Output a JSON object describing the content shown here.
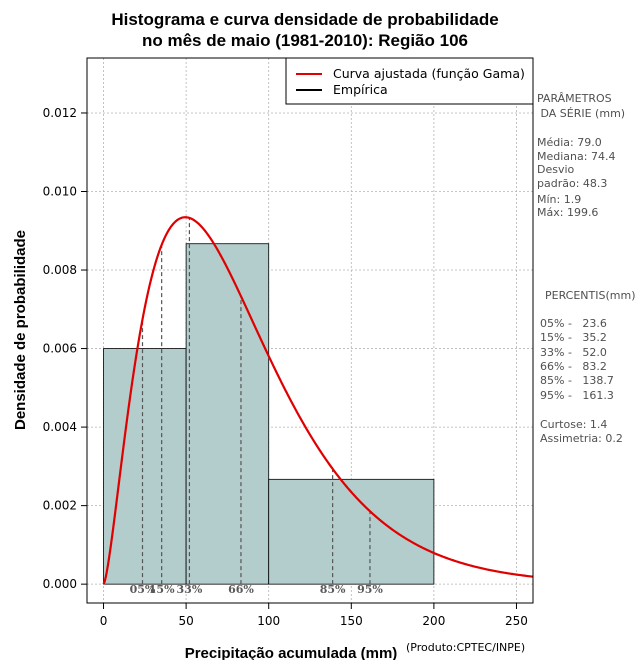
{
  "chart_data": {
    "type": "histogram",
    "title_lines": [
      "Histograma e curva densidade de probabilidade",
      "no mês de maio (1981-2010): Região 106"
    ],
    "xlabel": "Precipitação acumulada (mm)",
    "ylabel": "Densidade de probabilidade",
    "credit": "(Produto:CPTEC/INPE)",
    "xlim": [
      -10,
      260
    ],
    "ylim": [
      -0.00048,
      0.0134
    ],
    "x_ticks": [
      0,
      50,
      100,
      150,
      200,
      250
    ],
    "x_tick_labels": [
      "0",
      "50",
      "100",
      "150",
      "200",
      "250"
    ],
    "y_ticks": [
      0.0,
      0.002,
      0.004,
      0.006,
      0.008,
      0.01,
      0.012
    ],
    "y_tick_labels": [
      "0.000",
      "0.002",
      "0.004",
      "0.006",
      "0.008",
      "0.010",
      "0.012"
    ],
    "grid": true,
    "bins": [
      {
        "start": 0,
        "end": 50,
        "density": 0.006
      },
      {
        "start": 50,
        "end": 100,
        "density": 0.00867
      },
      {
        "start": 100,
        "end": 200,
        "density": 0.00267
      }
    ],
    "fitted_curve": {
      "name": "Curva ajustada (função Gama)",
      "distribution": "gamma",
      "shape": 2.5,
      "scale": 33.0,
      "x_range": [
        0,
        260
      ],
      "color": "#e00000"
    },
    "empirical": {
      "name": "Empírica",
      "color": "#000000"
    },
    "legend_position": "top-right",
    "percentile_markers": [
      {
        "label": "05%",
        "value": 23.6
      },
      {
        "label": "15%",
        "value": 35.2
      },
      {
        "label": "33%",
        "value": 52.0
      },
      {
        "label": "66%",
        "value": 83.2
      },
      {
        "label": "85%",
        "value": 138.7
      },
      {
        "label": "95%",
        "value": 161.3
      }
    ],
    "bar_color": "#b3cccc"
  },
  "side_panel": {
    "params_title": [
      "PARÂMETROS",
      " DA SÉRIE (mm)"
    ],
    "params_lines": [
      "Média:  79.0",
      "Mediana:  74.4",
      "Desvio",
      "padrão:  48.3",
      "Mín:  1.9",
      "Máx:  199.6"
    ],
    "percentis_title": "PERCENTIS(mm)",
    "percentis_lines": [
      "05% -   23.6",
      "15% -   35.2",
      "33% -   52.0",
      "66% -   83.2",
      "85% -   138.7",
      "95% -   161.3"
    ],
    "extra_lines": [
      "Curtose:  1.4",
      "Assimetria:  0.2"
    ]
  }
}
